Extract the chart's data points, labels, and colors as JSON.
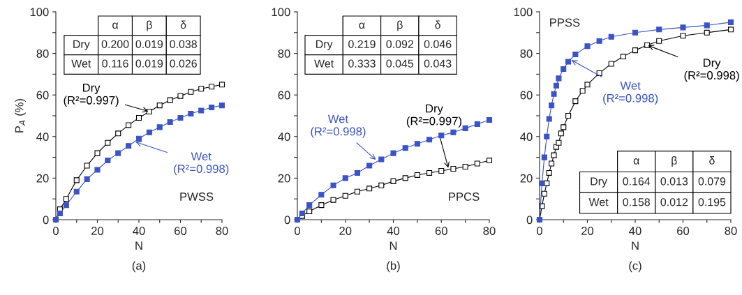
{
  "chart_data": [
    {
      "type": "line",
      "xlabel": "N",
      "ylabel": "P$_{A}$ (%)",
      "xlim": [
        0,
        80
      ],
      "ylim": [
        0,
        100
      ],
      "xticks": [
        0,
        {
          "value": 10,
          "label": null
        },
        20,
        {
          "value": 30,
          "label": null
        },
        40,
        {
          "value": 50,
          "label": null
        },
        60,
        {
          "value": 70,
          "label": null
        },
        80
      ],
      "yticks": [
        0,
        {
          "value": 10,
          "label": null
        },
        20,
        {
          "value": 30,
          "label": null
        },
        40,
        {
          "value": 50,
          "label": null
        },
        60,
        {
          "value": 70,
          "label": null
        },
        80,
        {
          "value": 90,
          "label": null
        },
        100
      ],
      "marker": "square",
      "line_style": "solid",
      "legend": false,
      "grid": false,
      "x": [
        0,
        2,
        5,
        10,
        15,
        20,
        25,
        30,
        35,
        40,
        45,
        50,
        55,
        60,
        65,
        70,
        75,
        80
      ],
      "series": [
        {
          "color": "#000000",
          "values": [
            0,
            5,
            10,
            19,
            26,
            32,
            37,
            41.5,
            45.5,
            49,
            52,
            55,
            57.5,
            59.5,
            61.5,
            63,
            64,
            65
          ]
        },
        {
          "color": "#3a53c5",
          "values": [
            0,
            3,
            7,
            13.5,
            19.5,
            24,
            28.5,
            32,
            35.5,
            39,
            42,
            44.5,
            47,
            49,
            51,
            52.5,
            54,
            55
          ]
        }
      ],
      "annotations": [
        "PWSS",
        "(a)",
        {
          "text": "Dry\n(R²=0.997)",
          "x": 45,
          "y": 52
        },
        {
          "text": "Wet\n(R²=0.998)",
          "x": 38,
          "y": 37.5
        },
        "α",
        "β",
        "δ",
        "Dry",
        "0.200",
        "0.019",
        "0.038",
        "Wet",
        "0.116",
        "0.019",
        "0.026"
      ]
    },
    {
      "type": "line",
      "xlabel": "N",
      "xlim": [
        0,
        80
      ],
      "ylim": [
        0,
        100
      ],
      "xticks": [
        0,
        {
          "value": 10,
          "label": null
        },
        20,
        {
          "value": 30,
          "label": null
        },
        40,
        {
          "value": 50,
          "label": null
        },
        60,
        {
          "value": 70,
          "label": null
        },
        80
      ],
      "yticks": [
        0,
        {
          "value": 10,
          "label": null
        },
        20,
        {
          "value": 30,
          "label": null
        },
        40,
        {
          "value": 50,
          "label": null
        },
        60,
        {
          "value": 70,
          "label": null
        },
        80,
        {
          "value": 90,
          "label": null
        },
        100
      ],
      "marker": "square",
      "line_style": "solid",
      "legend": false,
      "grid": false,
      "x": [
        0,
        2,
        5,
        10,
        15,
        20,
        25,
        30,
        35,
        40,
        45,
        50,
        55,
        60,
        65,
        70,
        75,
        80
      ],
      "series": [
        {
          "color": "#000000",
          "values": [
            0,
            1.8,
            4,
            7,
            9.5,
            11.5,
            13.5,
            15,
            16.5,
            18.5,
            20,
            21.5,
            22.5,
            23.5,
            24.5,
            25.5,
            27,
            28.5
          ]
        },
        {
          "color": "#3a53c5",
          "values": [
            0,
            3,
            7,
            12,
            16.5,
            20,
            22.5,
            26,
            29,
            32,
            34.5,
            36.5,
            38.5,
            40.5,
            42,
            44,
            46,
            48
          ]
        }
      ],
      "annotations": [
        "PPCS",
        "(b)",
        {
          "text": "Dry\n(R²=0.997)",
          "x": 63,
          "y": 24.5
        },
        {
          "text": "Wet\n(R²=0.998)",
          "x": 33,
          "y": 28.5
        },
        "α",
        "β",
        "δ",
        "Dry",
        "0.219",
        "0.092",
        "0.046",
        "Wet",
        "0.333",
        "0.045",
        "0.043"
      ]
    },
    {
      "type": "line",
      "xlabel": "N",
      "xlim": [
        0,
        80
      ],
      "ylim": [
        0,
        100
      ],
      "xticks": [
        0,
        {
          "value": 10,
          "label": null
        },
        20,
        {
          "value": 30,
          "label": null
        },
        40,
        {
          "value": 50,
          "label": null
        },
        60,
        {
          "value": 70,
          "label": null
        },
        80
      ],
      "yticks": [
        0,
        {
          "value": 10,
          "label": null
        },
        20,
        {
          "value": 30,
          "label": null
        },
        40,
        {
          "value": 50,
          "label": null
        },
        60,
        {
          "value": 70,
          "label": null
        },
        80,
        {
          "value": 90,
          "label": null
        },
        100
      ],
      "marker": "square",
      "line_style": "solid",
      "legend": false,
      "grid": false,
      "series": [
        {
          "color": "#000000",
          "x": [
            0,
            1,
            2,
            3,
            4,
            5,
            6,
            7,
            8,
            9,
            10,
            12,
            15,
            18,
            20,
            25,
            30,
            35,
            40,
            45,
            50,
            60,
            70,
            80
          ],
          "values": [
            0,
            6.5,
            12.5,
            17.5,
            22.5,
            27,
            31,
            35,
            37,
            41.5,
            44.5,
            50,
            57,
            62,
            65,
            70.5,
            75,
            78.5,
            81.5,
            84,
            86,
            88.5,
            90,
            91.5
          ]
        },
        {
          "color": "#3a53c5",
          "x": [
            0,
            1,
            2,
            3,
            4,
            5,
            6,
            7,
            8,
            10,
            12,
            15,
            20,
            25,
            30,
            40,
            50,
            60,
            70,
            80
          ],
          "values": [
            0,
            17.5,
            30,
            40,
            48.5,
            55,
            60.5,
            64.5,
            68,
            72.5,
            76,
            79.5,
            83.5,
            86,
            88,
            90,
            91.5,
            92.5,
            93.5,
            95
          ]
        }
      ],
      "annotations": [
        "PPSS",
        "(c)",
        {
          "text": "Dry\n(R²=0.998)",
          "x": 45,
          "y": 84
        },
        {
          "text": "Wet\n(R²=0.998)",
          "x": 13,
          "y": 77
        },
        "α",
        "β",
        "δ",
        "Dry",
        "0.164",
        "0.013",
        "0.079",
        "Wet",
        "0.158",
        "0.012",
        "0.195"
      ]
    }
  ]
}
